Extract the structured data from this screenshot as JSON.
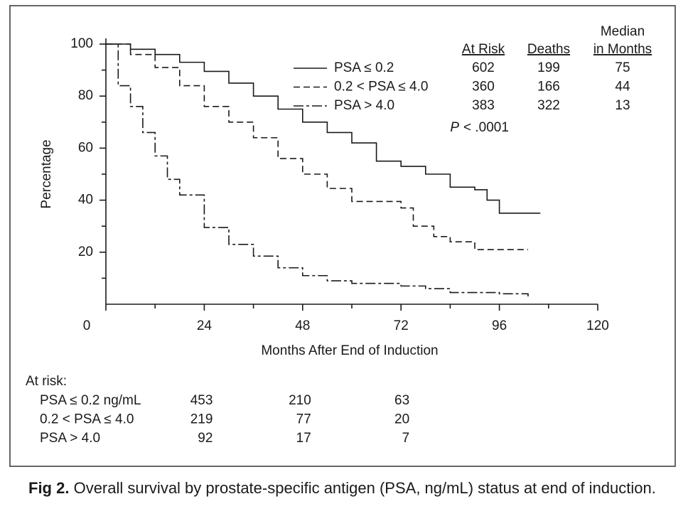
{
  "chart_data": {
    "type": "line",
    "step": true,
    "xlabel": "Months After End of Induction",
    "ylabel": "Percentage",
    "xlim": [
      0,
      120
    ],
    "ylim": [
      0,
      100
    ],
    "xticks": [
      0,
      24,
      48,
      72,
      96,
      120
    ],
    "yticks": [
      20,
      40,
      60,
      80,
      100
    ],
    "header": {
      "at_risk": "At Risk",
      "deaths": "Deaths",
      "median": [
        "Median",
        "in Months"
      ]
    },
    "p_label": "P",
    "p_value": "< .0001",
    "series": [
      {
        "name": "PSA ≤ 0.2",
        "color": "#1a1a1a",
        "dash": "solid",
        "at_risk": 602,
        "deaths": 199,
        "median": 75,
        "x": [
          0,
          6,
          12,
          18,
          24,
          30,
          36,
          42,
          48,
          54,
          60,
          66,
          72,
          78,
          84,
          90,
          93,
          96,
          106
        ],
        "values": [
          100,
          98,
          96,
          93,
          89.5,
          85,
          80,
          75,
          70,
          66,
          62,
          55,
          53,
          50,
          45,
          44,
          40,
          35,
          35
        ]
      },
      {
        "name": "0.2 < PSA ≤ 4.0",
        "color": "#1a1a1a",
        "dash": "dashed",
        "at_risk": 360,
        "deaths": 166,
        "median": 44,
        "x": [
          0,
          6,
          12,
          18,
          24,
          30,
          36,
          42,
          48,
          54,
          60,
          72,
          75,
          80,
          84,
          90,
          103
        ],
        "values": [
          100,
          96,
          91,
          84,
          76,
          70,
          64,
          56,
          50,
          44.5,
          39.5,
          37,
          30,
          26,
          24,
          21,
          21
        ]
      },
      {
        "name": "PSA > 4.0",
        "color": "#1a1a1a",
        "dash": "dashdot",
        "at_risk": 383,
        "deaths": 322,
        "median": 13,
        "x": [
          0,
          3,
          6,
          9,
          12,
          15,
          18,
          24,
          30,
          36,
          42,
          48,
          54,
          60,
          72,
          78,
          84,
          96,
          103
        ],
        "values": [
          100,
          84,
          76,
          66,
          57,
          48,
          42,
          29.5,
          23,
          18.5,
          14,
          11,
          9,
          8,
          7,
          6,
          4.5,
          4,
          3
        ]
      }
    ],
    "risk_table": {
      "title": "At risk:",
      "rows": [
        {
          "label": "PSA ≤ 0.2 ng/mL",
          "values": [
            453,
            210,
            63
          ]
        },
        {
          "label": "0.2 < PSA ≤ 4.0",
          "values": [
            219,
            77,
            20
          ]
        },
        {
          "label": "PSA > 4.0",
          "values": [
            92,
            17,
            7
          ]
        }
      ]
    }
  },
  "caption": {
    "label": "Fig 2.",
    "text": "Overall survival by prostate-specific antigen (PSA, ng/mL) status at end of induction."
  }
}
